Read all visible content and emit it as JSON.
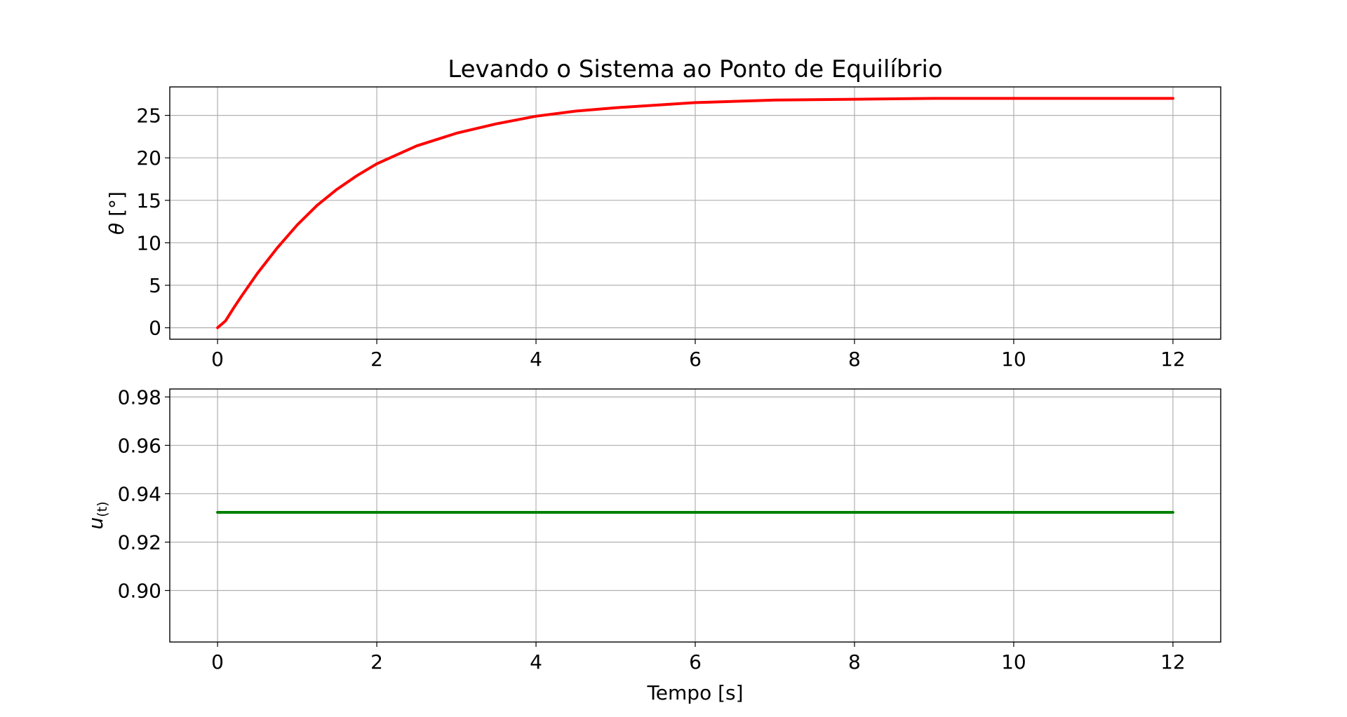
{
  "chart_data": [
    {
      "type": "line",
      "title": "Levando o Sistema ao Ponto de Equilíbrio",
      "xlabel": "",
      "ylabel_var": "θ",
      "ylabel_unit": " [°]",
      "xlim": [
        -0.6,
        12.6
      ],
      "ylim": [
        -1.35,
        28.35
      ],
      "xticks": [
        0,
        2,
        4,
        6,
        8,
        10,
        12
      ],
      "yticks": [
        0,
        5,
        10,
        15,
        20,
        25
      ],
      "grid": true,
      "series": [
        {
          "color": "#ff0000",
          "x": [
            0,
            0.1,
            0.2,
            0.3,
            0.5,
            0.75,
            1.0,
            1.25,
            1.5,
            1.75,
            2.0,
            2.5,
            3.0,
            3.5,
            4.0,
            4.5,
            5.0,
            6.0,
            7.0,
            8.0,
            9.0,
            10.0,
            11.0,
            12.0
          ],
          "y": [
            0,
            0.8,
            2.3,
            3.7,
            6.4,
            9.4,
            12.1,
            14.4,
            16.3,
            17.9,
            19.3,
            21.4,
            22.9,
            24.0,
            24.9,
            25.5,
            25.9,
            26.5,
            26.8,
            26.9,
            27.0,
            27.0,
            27.0,
            27.0
          ]
        }
      ]
    },
    {
      "type": "line",
      "title": "",
      "xlabel": "Tempo [s]",
      "ylabel_var": "u",
      "ylabel_sub": "(t)",
      "xlim": [
        -0.6,
        12.6
      ],
      "ylim": [
        0.8787,
        0.9833
      ],
      "xticks": [
        0,
        2,
        4,
        6,
        8,
        10,
        12
      ],
      "yticks": [
        0.9,
        0.92,
        0.94,
        0.96,
        0.98
      ],
      "ytick_labels": [
        "0.90",
        "0.92",
        "0.94",
        "0.96",
        "0.98"
      ],
      "grid": true,
      "series": [
        {
          "color": "#008000",
          "x": [
            0,
            12
          ],
          "y": [
            0.9323,
            0.9323
          ]
        }
      ]
    }
  ]
}
